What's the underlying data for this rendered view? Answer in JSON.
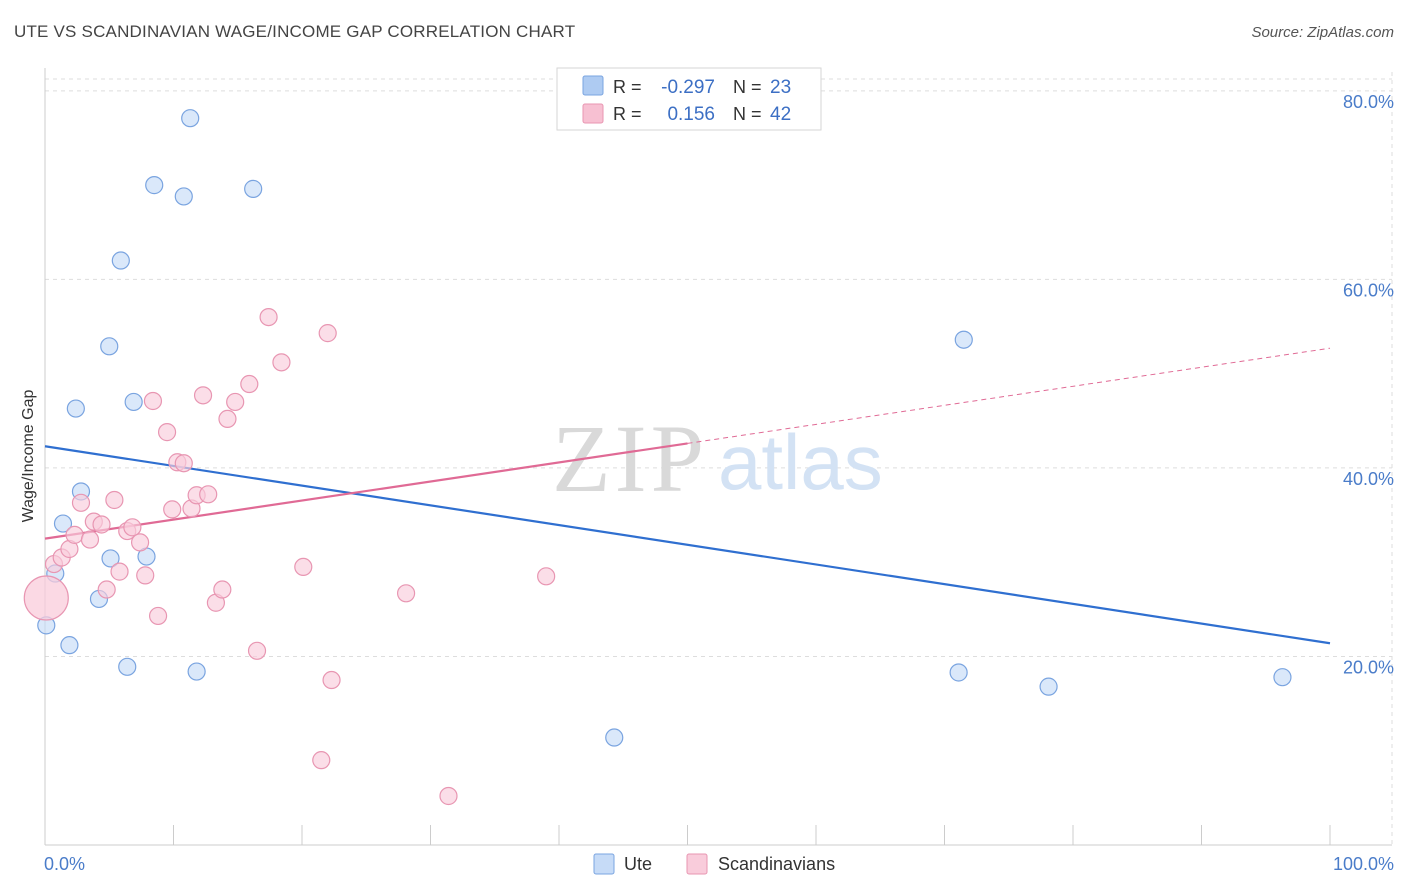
{
  "header": {
    "title": "UTE VS SCANDINAVIAN WAGE/INCOME GAP CORRELATION CHART",
    "source": "Source: ZipAtlas.com"
  },
  "watermark": {
    "zip": "ZIP",
    "atlas": "atlas"
  },
  "stats": [
    {
      "r_label": "R =",
      "r_value": "-0.297",
      "n_label": "N =",
      "n_value": "23",
      "color": "#aecbf2",
      "border": "#7aa4e0"
    },
    {
      "r_label": "R =",
      "r_value": "0.156",
      "n_label": "N =",
      "n_value": "42",
      "color": "#f7c0d2",
      "border": "#e896b2"
    }
  ],
  "legend": [
    {
      "name": "Ute",
      "color": "#c6dbf7",
      "border": "#7aa4e0"
    },
    {
      "name": "Scandinavians",
      "color": "#f9ccdb",
      "border": "#e896b2"
    }
  ],
  "chart_data": {
    "type": "scatter",
    "title": "UTE VS SCANDINAVIAN WAGE/INCOME GAP CORRELATION CHART",
    "xlabel": "",
    "ylabel": "Wage/Income Gap",
    "xlim": [
      0,
      100
    ],
    "ylim": [
      0,
      82
    ],
    "x_tick_labels": [
      "0.0%",
      "100.0%"
    ],
    "y_ticks": [
      20,
      40,
      60,
      80
    ],
    "y_tick_labels": [
      "20.0%",
      "40.0%",
      "60.0%",
      "80.0%"
    ],
    "grid": true,
    "legend_position": "bottom-center",
    "series": [
      {
        "name": "Ute",
        "color": "#7aa4e0",
        "fill": "#c6dbf7",
        "trend_color": "#2f6fd0",
        "trend": {
          "x": [
            0,
            100
          ],
          "y": [
            42.3,
            21.4
          ]
        },
        "points": [
          {
            "x": 0.1,
            "y": 23.3
          },
          {
            "x": 0.8,
            "y": 28.8
          },
          {
            "x": 1.4,
            "y": 34.1
          },
          {
            "x": 1.9,
            "y": 21.2
          },
          {
            "x": 2.4,
            "y": 46.3
          },
          {
            "x": 2.8,
            "y": 37.5
          },
          {
            "x": 4.2,
            "y": 26.1
          },
          {
            "x": 5.1,
            "y": 30.4
          },
          {
            "x": 5.0,
            "y": 52.9
          },
          {
            "x": 5.9,
            "y": 62.0
          },
          {
            "x": 6.4,
            "y": 18.9
          },
          {
            "x": 6.9,
            "y": 47.0
          },
          {
            "x": 7.9,
            "y": 30.6
          },
          {
            "x": 8.5,
            "y": 70.0
          },
          {
            "x": 10.8,
            "y": 68.8
          },
          {
            "x": 11.3,
            "y": 77.1
          },
          {
            "x": 11.8,
            "y": 18.4
          },
          {
            "x": 16.2,
            "y": 69.6
          },
          {
            "x": 44.3,
            "y": 11.4
          },
          {
            "x": 71.1,
            "y": 18.3
          },
          {
            "x": 71.5,
            "y": 53.6
          },
          {
            "x": 78.1,
            "y": 16.8
          },
          {
            "x": 96.3,
            "y": 17.8
          }
        ]
      },
      {
        "name": "Scandinavians",
        "color": "#e896b2",
        "fill": "#f9ccdb",
        "trend_color": "#e06a95",
        "trend": {
          "x": [
            0,
            50
          ],
          "y": [
            32.5,
            42.6
          ]
        },
        "trend_dashed": {
          "x": [
            50,
            100
          ],
          "y": [
            42.6,
            52.7
          ]
        },
        "points": [
          {
            "x": 0.1,
            "y": 26.2,
            "big": true
          },
          {
            "x": 0.7,
            "y": 29.8
          },
          {
            "x": 1.3,
            "y": 30.5
          },
          {
            "x": 1.9,
            "y": 31.4
          },
          {
            "x": 2.3,
            "y": 32.9
          },
          {
            "x": 2.8,
            "y": 36.3
          },
          {
            "x": 3.5,
            "y": 32.4
          },
          {
            "x": 3.8,
            "y": 34.3
          },
          {
            "x": 4.4,
            "y": 34.0
          },
          {
            "x": 4.8,
            "y": 27.1
          },
          {
            "x": 5.4,
            "y": 36.6
          },
          {
            "x": 5.8,
            "y": 29.0
          },
          {
            "x": 6.4,
            "y": 33.3
          },
          {
            "x": 6.8,
            "y": 33.7
          },
          {
            "x": 7.4,
            "y": 32.1
          },
          {
            "x": 7.8,
            "y": 28.6
          },
          {
            "x": 8.4,
            "y": 47.1
          },
          {
            "x": 8.8,
            "y": 24.3
          },
          {
            "x": 9.5,
            "y": 43.8
          },
          {
            "x": 9.9,
            "y": 35.6
          },
          {
            "x": 10.3,
            "y": 40.6
          },
          {
            "x": 10.8,
            "y": 40.5
          },
          {
            "x": 11.4,
            "y": 35.7
          },
          {
            "x": 11.8,
            "y": 37.1
          },
          {
            "x": 12.3,
            "y": 47.7
          },
          {
            "x": 12.7,
            "y": 37.2
          },
          {
            "x": 13.3,
            "y": 25.7
          },
          {
            "x": 13.8,
            "y": 27.1
          },
          {
            "x": 14.2,
            "y": 45.2
          },
          {
            "x": 14.8,
            "y": 47.0
          },
          {
            "x": 15.9,
            "y": 48.9
          },
          {
            "x": 16.5,
            "y": 20.6
          },
          {
            "x": 17.4,
            "y": 56.0
          },
          {
            "x": 18.4,
            "y": 51.2
          },
          {
            "x": 20.1,
            "y": 29.5
          },
          {
            "x": 21.5,
            "y": 9.0
          },
          {
            "x": 22.0,
            "y": 54.3
          },
          {
            "x": 22.3,
            "y": 17.5
          },
          {
            "x": 28.1,
            "y": 26.7
          },
          {
            "x": 31.4,
            "y": 5.2
          },
          {
            "x": 39.0,
            "y": 28.5
          },
          {
            "x": 43.2,
            "y": 78.5
          }
        ]
      }
    ]
  }
}
